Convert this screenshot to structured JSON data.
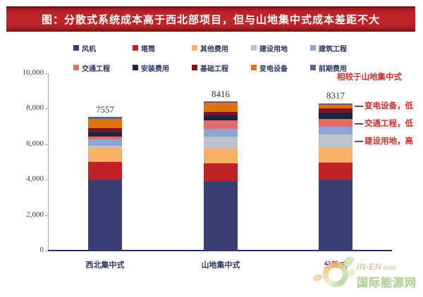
{
  "title": "图：分散式系统成本高于西北部项目，但与山地集中式成本差距不大",
  "chart_data": {
    "type": "bar",
    "stacked": true,
    "categories": [
      "西北集中式",
      "山地集中式",
      "分散式"
    ],
    "totals": [
      "7557",
      "8416",
      "8317"
    ],
    "series": [
      {
        "name": "风机",
        "color": "#3a3e74",
        "values": [
          3950,
          3900,
          3950
        ]
      },
      {
        "name": "塔筒",
        "color": "#c0222a",
        "values": [
          1050,
          1020,
          1030
        ]
      },
      {
        "name": "其他费用",
        "color": "#f9b168",
        "values": [
          800,
          830,
          820
        ]
      },
      {
        "name": "建设用地",
        "color": "#bdc2cd",
        "values": [
          120,
          700,
          760
        ]
      },
      {
        "name": "建筑工程",
        "color": "#8ca5d5",
        "values": [
          360,
          420,
          430
        ]
      },
      {
        "name": "交通工程",
        "color": "#e56b66",
        "values": [
          160,
          460,
          420
        ]
      },
      {
        "name": "安装费用",
        "color": "#1b2345",
        "values": [
          240,
          300,
          390
        ]
      },
      {
        "name": "基础工程",
        "color": "#7e1520",
        "values": [
          240,
          200,
          230
        ]
      },
      {
        "name": "变电设备",
        "color": "#de720d",
        "values": [
          500,
          490,
          180
        ]
      },
      {
        "name": "前期费用",
        "color": "#5c6487",
        "values": [
          137,
          96,
          107
        ]
      }
    ],
    "ylim": [
      0,
      10000
    ],
    "ytick_labels": [
      "0",
      "2,000",
      "4,000",
      "6,000",
      "8,000",
      "10,000"
    ],
    "grid": false,
    "legend_position": "top"
  },
  "annotations": {
    "header": "相较于山地集中式",
    "items": [
      "变电设备，低",
      "交通工程，低",
      "建设用地，高"
    ],
    "color": "#cf2f2a"
  },
  "watermark": {
    "line1": "IN-EN",
    "line1_suffix": ".com",
    "line2": "国际能源网"
  }
}
